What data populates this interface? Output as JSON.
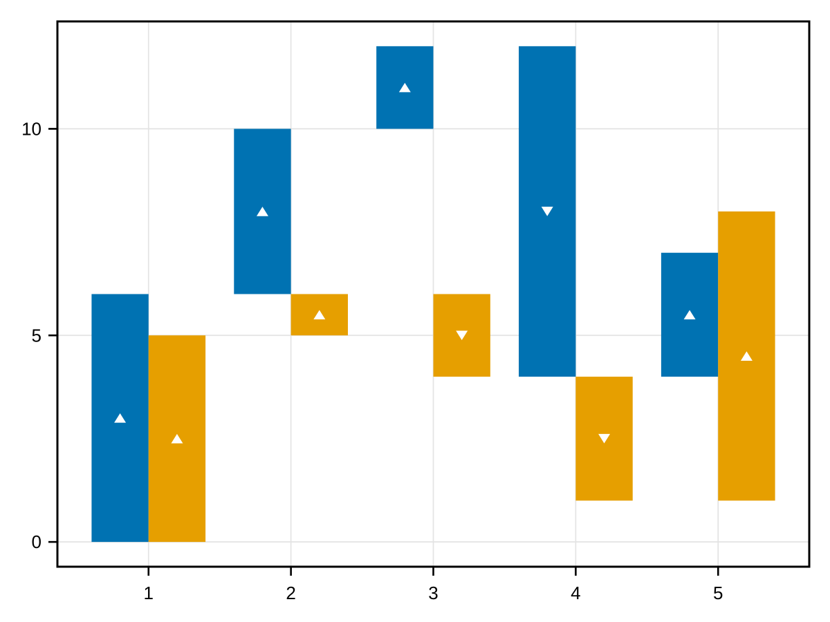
{
  "chart_data": {
    "type": "bar",
    "variant": "grouped-floating-range-bars-with-direction-markers",
    "title": "",
    "xlabel": "",
    "ylabel": "",
    "grid": true,
    "legend": null,
    "xlim": [
      0.36,
      5.64
    ],
    "ylim": [
      -0.6,
      12.6
    ],
    "x_ticks": [
      1,
      2,
      3,
      4,
      5
    ],
    "x_tick_labels": [
      "1",
      "2",
      "3",
      "4",
      "5"
    ],
    "y_ticks": [
      0,
      5,
      10
    ],
    "y_tick_labels": [
      "0",
      "5",
      "10"
    ],
    "bar_width": 0.4,
    "marker_color": "#ffffff",
    "grid_color": "#e3e3e3",
    "spine_color": "#000000",
    "background_color": "#ffffff",
    "series": [
      {
        "name": "blue-series",
        "color": "#0072B2",
        "bars": [
          {
            "x": 0.8,
            "low": 0,
            "high": 6,
            "marker": 3,
            "direction": "up"
          },
          {
            "x": 1.8,
            "low": 6,
            "high": 10,
            "marker": 8,
            "direction": "up"
          },
          {
            "x": 2.8,
            "low": 10,
            "high": 12,
            "marker": 11,
            "direction": "up"
          },
          {
            "x": 3.8,
            "low": 4,
            "high": 12,
            "marker": 8,
            "direction": "down"
          },
          {
            "x": 4.8,
            "low": 4,
            "high": 7,
            "marker": 5.5,
            "direction": "up"
          }
        ]
      },
      {
        "name": "orange-series",
        "color": "#E69F00",
        "bars": [
          {
            "x": 1.2,
            "low": 0,
            "high": 5,
            "marker": 2.5,
            "direction": "up"
          },
          {
            "x": 2.2,
            "low": 5,
            "high": 6,
            "marker": 5.5,
            "direction": "up"
          },
          {
            "x": 3.2,
            "low": 4,
            "high": 6,
            "marker": 5,
            "direction": "down"
          },
          {
            "x": 4.2,
            "low": 1,
            "high": 4,
            "marker": 2.5,
            "direction": "down"
          },
          {
            "x": 5.2,
            "low": 1,
            "high": 8,
            "marker": 4.5,
            "direction": "up"
          }
        ]
      }
    ]
  }
}
